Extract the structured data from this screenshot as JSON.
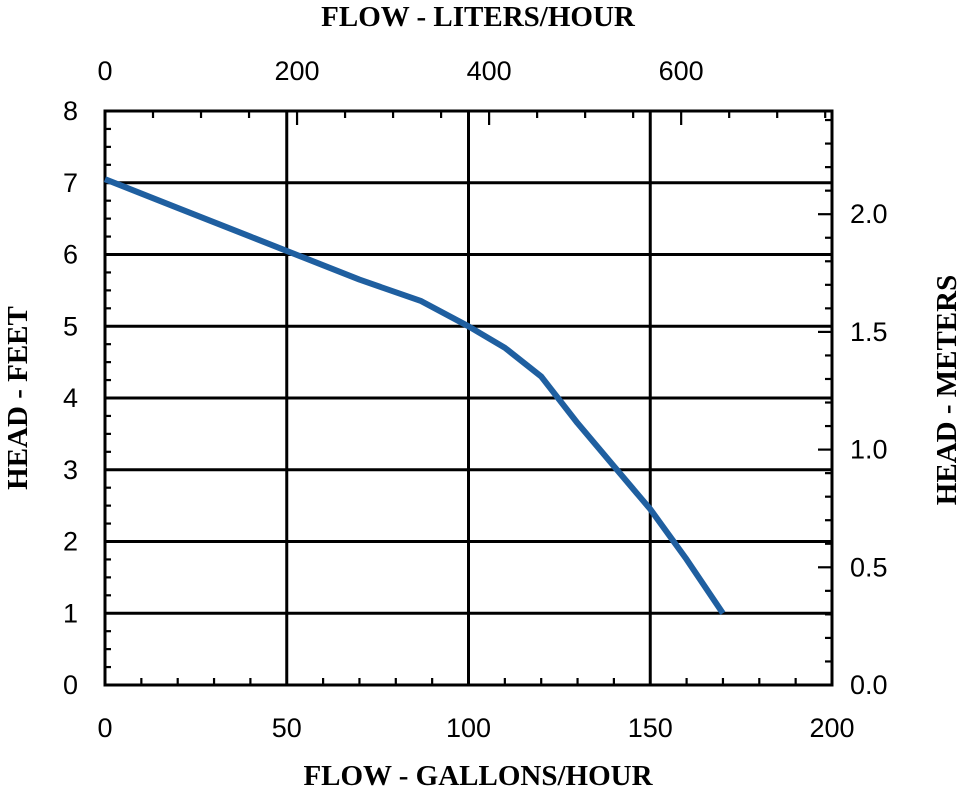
{
  "chart_data": {
    "type": "line",
    "top_title": "FLOW - LITERS/HOUR",
    "xlabel": "FLOW - GALLONS/HOUR",
    "ylabel": "HEAD - FEET",
    "ylabel_right": "HEAD - METERS",
    "xlim": [
      0,
      200
    ],
    "ylim": [
      0,
      8
    ],
    "x_ticks": [
      "0",
      "50",
      "100",
      "150",
      "200"
    ],
    "y_ticks": [
      "0",
      "1",
      "2",
      "3",
      "4",
      "5",
      "6",
      "7",
      "8"
    ],
    "x_top_ticks": [
      "0",
      "200",
      "400",
      "600"
    ],
    "y_right_ticks": [
      "0.0",
      "0.5",
      "1.0",
      "1.5",
      "2.0"
    ],
    "grid": true,
    "line_color": "#1f5fa0",
    "series": [
      {
        "x": [
          0,
          20,
          40,
          55,
          70,
          87,
          100,
          110,
          120,
          130,
          140,
          150,
          160,
          170
        ],
        "y": [
          7.05,
          6.65,
          6.25,
          5.95,
          5.65,
          5.35,
          5.0,
          4.7,
          4.3,
          3.65,
          3.05,
          2.45,
          1.75,
          1.0
        ]
      }
    ]
  }
}
